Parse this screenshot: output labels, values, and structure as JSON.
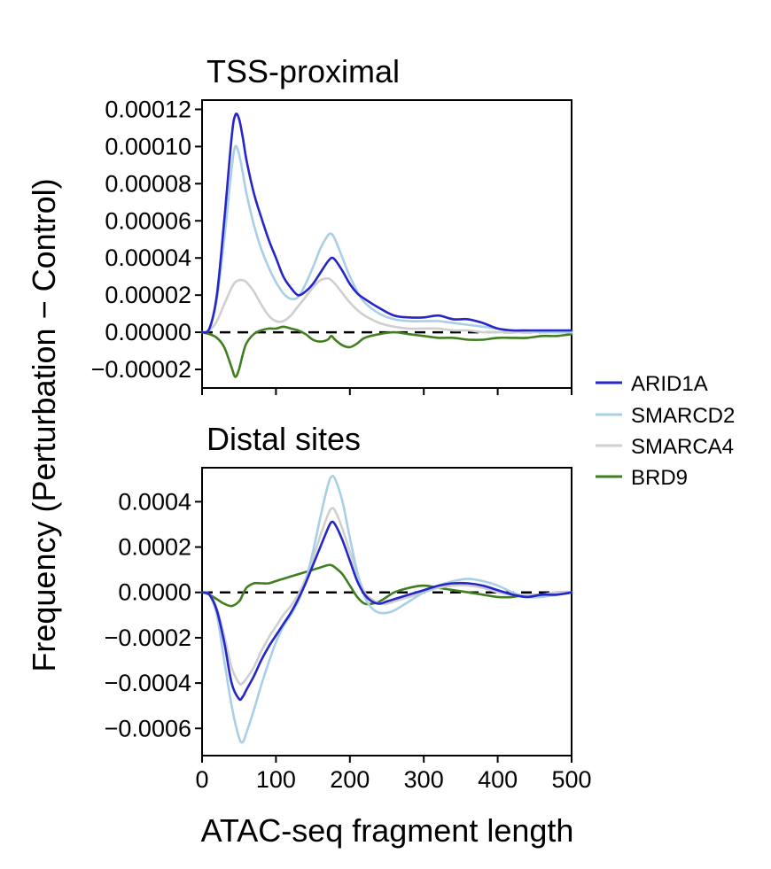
{
  "chart_data": {
    "type": "line",
    "xlabel": "ATAC-seq fragment length",
    "ylabel": "Frequency (Perturbation − Control)",
    "x_tick_labels": [
      "0",
      "100",
      "200",
      "300",
      "400",
      "500"
    ],
    "x_ticks": [
      0,
      100,
      200,
      300,
      400,
      500
    ],
    "xlim": [
      0,
      500
    ],
    "legend": {
      "placement": "right",
      "entries": [
        {
          "name": "ARID1A",
          "color": "#2525c8"
        },
        {
          "name": "SMARCD2",
          "color": "#a9cfe6"
        },
        {
          "name": "SMARCA4",
          "color": "#cfcfcf"
        },
        {
          "name": "BRD9",
          "color": "#3f7f20"
        }
      ]
    },
    "panels": [
      {
        "title": "TSS-proximal",
        "ylim": [
          -3e-05,
          0.000125
        ],
        "y_ticks": [
          -2e-05,
          0.0,
          2e-05,
          4e-05,
          6e-05,
          8e-05,
          0.0001,
          0.00012
        ],
        "y_tick_labels": [
          "−0.00002",
          "0.00000",
          "0.00002",
          "0.00004",
          "0.00006",
          "0.00008",
          "0.00010",
          "0.00012"
        ],
        "x": [
          0,
          10,
          20,
          30,
          40,
          45,
          50,
          55,
          60,
          70,
          80,
          90,
          100,
          110,
          120,
          130,
          140,
          150,
          160,
          170,
          175,
          180,
          190,
          200,
          210,
          220,
          240,
          260,
          280,
          300,
          320,
          340,
          360,
          380,
          400,
          420,
          440,
          460,
          480,
          500
        ],
        "series": [
          {
            "name": "ARID1A",
            "color": "#2525c8",
            "values": [
              0,
              2e-06,
              2e-05,
              6e-05,
              0.000105,
              0.000117,
              0.000115,
              0.000105,
              9.3e-05,
              7.5e-05,
              6.2e-05,
              5e-05,
              4e-05,
              3e-05,
              2.4e-05,
              2e-05,
              2.2e-05,
              2.6e-05,
              3.2e-05,
              3.8e-05,
              4e-05,
              3.9e-05,
              3.3e-05,
              2.6e-05,
              2.1e-05,
              1.8e-05,
              1.3e-05,
              9e-06,
              8e-06,
              8e-06,
              9e-06,
              7e-06,
              7e-06,
              5e-06,
              2e-06,
              1e-06,
              1e-06,
              1e-06,
              1e-06,
              1e-06
            ]
          },
          {
            "name": "SMARCD2",
            "color": "#a9cfe6",
            "values": [
              0,
              2e-06,
              1.8e-05,
              5e-05,
              8.8e-05,
              0.0001,
              9.6e-05,
              8.6e-05,
              7.5e-05,
              5.8e-05,
              4.5e-05,
              3.5e-05,
              2.7e-05,
              2.1e-05,
              1.8e-05,
              1.9e-05,
              2.6e-05,
              3.5e-05,
              4.5e-05,
              5.2e-05,
              5.3e-05,
              5e-05,
              4e-05,
              3e-05,
              2.2e-05,
              1.6e-05,
              1e-05,
              7e-06,
              6e-06,
              6e-06,
              6e-06,
              5e-06,
              4e-06,
              3e-06,
              2e-06,
              1e-06,
              1e-06,
              0.0,
              0.0,
              0.0
            ]
          },
          {
            "name": "SMARCA4",
            "color": "#cfcfcf",
            "values": [
              0,
              1e-06,
              6e-06,
              1.5e-05,
              2.4e-05,
              2.7e-05,
              2.8e-05,
              2.8e-05,
              2.7e-05,
              2.2e-05,
              1.5e-05,
              9e-06,
              6e-06,
              6e-06,
              9e-06,
              1.4e-05,
              1.9e-05,
              2.4e-05,
              2.8e-05,
              2.9e-05,
              2.8e-05,
              2.6e-05,
              2.1e-05,
              1.6e-05,
              1.2e-05,
              9e-06,
              5e-06,
              3e-06,
              2e-06,
              2e-06,
              2e-06,
              1e-06,
              1e-06,
              0.0,
              0.0,
              0.0,
              0.0,
              0.0,
              0.0,
              0.0
            ]
          },
          {
            "name": "BRD9",
            "color": "#3f7f20",
            "values": [
              0,
              -1e-06,
              -3e-06,
              -8e-06,
              -1.9e-05,
              -2.4e-05,
              -2e-05,
              -1.2e-05,
              -6e-06,
              -1e-06,
              1e-06,
              2e-06,
              2e-06,
              3e-06,
              2e-06,
              1e-06,
              -1e-06,
              -4e-06,
              -5e-06,
              -4e-06,
              -2e-06,
              -4e-06,
              -7e-06,
              -8e-06,
              -6e-06,
              -3e-06,
              -1e-06,
              0.0,
              -1e-06,
              -2e-06,
              -3e-06,
              -3e-06,
              -4e-06,
              -4e-06,
              -3e-06,
              -3e-06,
              -3e-06,
              -2e-06,
              -2e-06,
              -1e-06
            ]
          }
        ]
      },
      {
        "title": "Distal sites",
        "ylim": [
          -0.00072,
          0.00055
        ],
        "y_ticks": [
          -0.0006,
          -0.0004,
          -0.0002,
          0.0,
          0.0002,
          0.0004
        ],
        "y_tick_labels": [
          "−0.0006",
          "−0.0004",
          "−0.0002",
          "0.0000",
          "0.0002",
          "0.0004"
        ],
        "x": [
          0,
          10,
          20,
          30,
          40,
          50,
          55,
          60,
          70,
          80,
          90,
          100,
          110,
          120,
          130,
          140,
          150,
          160,
          170,
          175,
          180,
          190,
          200,
          210,
          220,
          230,
          240,
          250,
          260,
          280,
          300,
          320,
          340,
          360,
          380,
          400,
          420,
          440,
          460,
          480,
          500
        ],
        "series": [
          {
            "name": "ARID1A",
            "color": "#2525c8",
            "values": [
              0,
              -1e-05,
              -8e-05,
              -0.00022,
              -0.0004,
              -0.00047,
              -0.00046,
              -0.00043,
              -0.00037,
              -0.0003,
              -0.00024,
              -0.00019,
              -0.00014,
              -9e-05,
              -3e-05,
              4e-05,
              0.00012,
              0.0002,
              0.00028,
              0.00031,
              0.0003,
              0.00023,
              0.00014,
              5e-05,
              -1e-05,
              -4e-05,
              -5e-05,
              -4e-05,
              -3e-05,
              -1e-05,
              1e-05,
              3e-05,
              4e-05,
              4e-05,
              3e-05,
              1e-05,
              -1e-05,
              -2e-05,
              -1e-05,
              -1e-05,
              0
            ]
          },
          {
            "name": "SMARCD2",
            "color": "#a9cfe6",
            "values": [
              0,
              -1e-05,
              -0.0001,
              -0.0003,
              -0.0005,
              -0.00064,
              -0.00066,
              -0.00062,
              -0.00052,
              -0.00041,
              -0.00031,
              -0.00022,
              -0.00015,
              -0.0001,
              -4e-05,
              5e-05,
              0.00018,
              0.00033,
              0.00047,
              0.00051,
              0.0005,
              0.0004,
              0.00024,
              9e-05,
              -2e-05,
              -7e-05,
              -9e-05,
              -9e-05,
              -8e-05,
              -4e-05,
              0.0,
              3e-05,
              5e-05,
              6e-05,
              5e-05,
              3e-05,
              0.0,
              -2e-05,
              -2e-05,
              -1e-05,
              0
            ]
          },
          {
            "name": "SMARCA4",
            "color": "#cfcfcf",
            "values": [
              0,
              -1e-05,
              -7e-05,
              -0.00019,
              -0.00033,
              -0.0004,
              -0.0004,
              -0.00038,
              -0.00033,
              -0.00026,
              -0.0002,
              -0.00015,
              -0.0001,
              -6e-05,
              -1e-05,
              6e-05,
              0.00015,
              0.00025,
              0.00034,
              0.00037,
              0.00036,
              0.00028,
              0.00018,
              8e-05,
              0.0,
              -3e-05,
              -5e-05,
              -5e-05,
              -4e-05,
              -2e-05,
              0.0,
              2e-05,
              3e-05,
              3e-05,
              2e-05,
              0.0,
              -1e-05,
              -1e-05,
              -1e-05,
              0.0,
              0
            ]
          },
          {
            "name": "BRD9",
            "color": "#3f7f20",
            "values": [
              0,
              -1e-05,
              -3e-05,
              -5e-05,
              -6e-05,
              -4e-05,
              -1e-05,
              2e-05,
              4e-05,
              4e-05,
              4e-05,
              5e-05,
              6e-05,
              7e-05,
              8e-05,
              9e-05,
              0.0001,
              0.00011,
              0.00012,
              0.00012,
              0.00011,
              8e-05,
              3e-05,
              -2e-05,
              -5e-05,
              -5e-05,
              -4e-05,
              -2e-05,
              0.0,
              2e-05,
              3e-05,
              2e-05,
              1e-05,
              0.0,
              -1e-05,
              -2e-05,
              -2e-05,
              -1e-05,
              -1e-05,
              0.0,
              0
            ]
          }
        ]
      }
    ]
  }
}
